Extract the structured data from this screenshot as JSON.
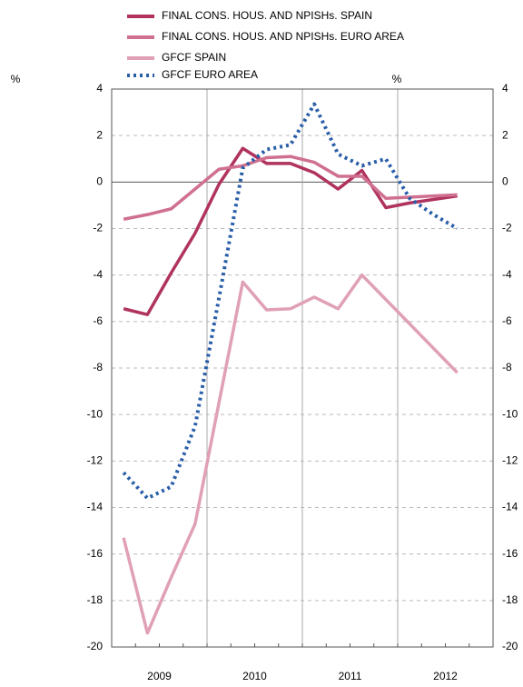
{
  "chart_data": {
    "type": "line",
    "years": [
      "2009",
      "2010",
      "2011",
      "2012"
    ],
    "categories": [
      null,
      null,
      null,
      null,
      null,
      null,
      null,
      null,
      null,
      null,
      null,
      null,
      null,
      null,
      null
    ],
    "series": [
      {
        "name": "FINAL CONS. HOUS. AND NPISHs. SPAIN",
        "color": "#b0335f",
        "style": "solid",
        "values": [
          -5.45,
          -5.7,
          -3.9,
          -2.2,
          -0.1,
          1.45,
          0.8,
          0.8,
          0.4,
          -0.3,
          0.5,
          -1.1,
          -0.9,
          -0.75,
          -0.6
        ]
      },
      {
        "name": "FINAL CONS. HOUS. AND NPISHs. EURO AREA",
        "color": "#d0708f",
        "style": "solid",
        "values": [
          -1.6,
          -1.4,
          -1.15,
          -0.3,
          0.55,
          0.7,
          1.05,
          1.1,
          0.85,
          0.25,
          0.25,
          -0.7,
          -0.65,
          -0.6,
          -0.55
        ]
      },
      {
        "name": "GFCF SPAIN",
        "color": "#e0a0b5",
        "style": "solid",
        "values": [
          -15.3,
          -19.4,
          -17,
          -14.7,
          -9.5,
          -4.3,
          -5.5,
          -5.45,
          -4.95,
          -5.45,
          -4,
          -5.05,
          -6.1,
          -7.15,
          -8.2
        ]
      },
      {
        "name": "GFCF EURO AREA",
        "color": "#2a5ea8",
        "style": "dotted",
        "values": [
          -12.5,
          -13.6,
          -13.1,
          -10.5,
          -5,
          0.6,
          1.4,
          1.6,
          3.35,
          1.2,
          0.7,
          1.0,
          -0.7,
          -1.4,
          -2
        ]
      }
    ],
    "ylabel": "%",
    "y2label": "%",
    "ylim": [
      -20,
      4
    ],
    "yticks": [
      -20,
      -18,
      -16,
      -14,
      -12,
      -10,
      -8,
      -6,
      -4,
      -2,
      0,
      2,
      4
    ],
    "y2lim": [
      -20,
      4
    ],
    "y2ticks": [
      -20,
      -18,
      -16,
      -14,
      -12,
      -10,
      -8,
      -6,
      -4,
      -2,
      0,
      2,
      4
    ],
    "grid": true
  }
}
